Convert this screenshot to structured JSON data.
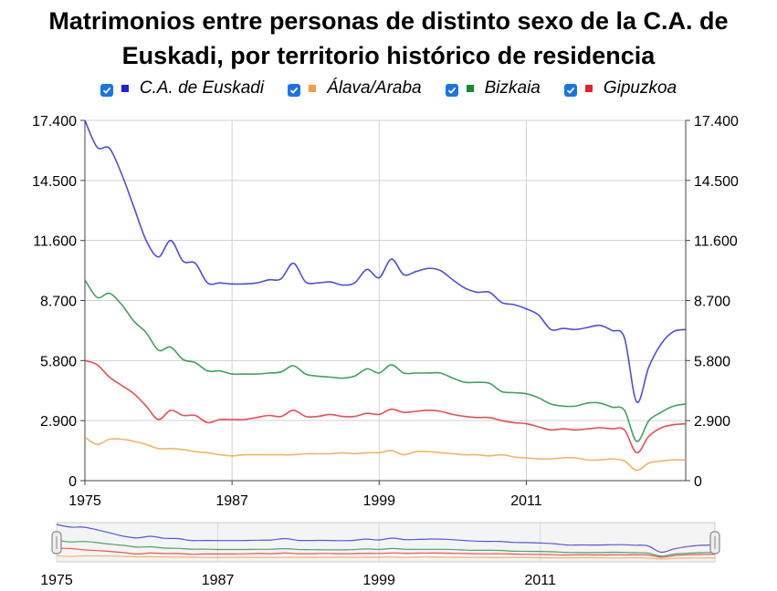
{
  "title": "Matrimonios entre personas de distinto sexo de la C.A. de Euskadi, por territorio histórico de residencia",
  "legend": [
    {
      "name": "C.A. de Euskadi",
      "color": "#2222dd",
      "checked": true
    },
    {
      "name": "Álava/Araba",
      "color": "#f0a040",
      "checked": true
    },
    {
      "name": "Bizkaia",
      "color": "#138a36",
      "checked": true
    },
    {
      "name": "Gipuzkoa",
      "color": "#e8202a",
      "checked": true
    }
  ],
  "chart_data": {
    "type": "line",
    "title": "Matrimonios entre personas de distinto sexo de la C.A. de Euskadi, por territorio histórico de residencia",
    "xlabel": "",
    "ylabel": "",
    "xlim": [
      1975,
      2024
    ],
    "ylim": [
      0,
      17400
    ],
    "x_ticks": [
      "1975",
      "1987",
      "1999",
      "2011"
    ],
    "y_ticks": [
      "0",
      "2.900",
      "5.800",
      "8.700",
      "11.600",
      "14.500",
      "17.400"
    ],
    "grid": true,
    "legend_position": "top",
    "x": [
      1975,
      1976,
      1977,
      1978,
      1979,
      1980,
      1981,
      1982,
      1983,
      1984,
      1985,
      1986,
      1987,
      1988,
      1989,
      1990,
      1991,
      1992,
      1993,
      1994,
      1995,
      1996,
      1997,
      1998,
      1999,
      2000,
      2001,
      2002,
      2003,
      2004,
      2005,
      2006,
      2007,
      2008,
      2009,
      2010,
      2011,
      2012,
      2013,
      2014,
      2015,
      2016,
      2017,
      2018,
      2019,
      2020,
      2021,
      2022,
      2023,
      2024
    ],
    "series": [
      {
        "name": "C.A. de Euskadi",
        "color": "#2222dd",
        "values": [
          17400,
          16100,
          16050,
          14800,
          13200,
          11600,
          10800,
          11600,
          10600,
          10500,
          9550,
          9550,
          9500,
          9500,
          9550,
          9700,
          9750,
          10500,
          9600,
          9550,
          9600,
          9450,
          9550,
          10200,
          9800,
          10700,
          9950,
          10100,
          10250,
          10150,
          9700,
          9300,
          9100,
          9100,
          8600,
          8500,
          8300,
          8000,
          7300,
          7350,
          7300,
          7400,
          7500,
          7250,
          6900,
          3800,
          5500,
          6600,
          7200,
          7300
        ]
      },
      {
        "name": "Álava/Araba",
        "color": "#f0a040",
        "values": [
          2100,
          1750,
          2000,
          2000,
          1900,
          1750,
          1550,
          1550,
          1500,
          1400,
          1350,
          1250,
          1200,
          1250,
          1250,
          1250,
          1250,
          1250,
          1300,
          1300,
          1300,
          1350,
          1300,
          1350,
          1350,
          1450,
          1250,
          1400,
          1400,
          1350,
          1300,
          1250,
          1250,
          1200,
          1250,
          1150,
          1100,
          1050,
          1050,
          1100,
          1100,
          1000,
          1000,
          1050,
          950,
          500,
          850,
          950,
          1000,
          1000
        ]
      },
      {
        "name": "Bizkaia",
        "color": "#138a36",
        "values": [
          9700,
          8850,
          9050,
          8500,
          7700,
          7150,
          6300,
          6450,
          5850,
          5700,
          5300,
          5300,
          5150,
          5150,
          5150,
          5200,
          5250,
          5550,
          5150,
          5050,
          5000,
          4950,
          5050,
          5400,
          5200,
          5600,
          5200,
          5200,
          5200,
          5200,
          4950,
          4750,
          4750,
          4700,
          4300,
          4250,
          4200,
          4000,
          3700,
          3600,
          3600,
          3750,
          3750,
          3550,
          3400,
          1900,
          2900,
          3300,
          3600,
          3700
        ]
      },
      {
        "name": "Gipuzkoa",
        "color": "#e8202a",
        "values": [
          5800,
          5600,
          5000,
          4600,
          4200,
          3600,
          2950,
          3400,
          3150,
          3150,
          2800,
          2950,
          2950,
          2950,
          3050,
          3150,
          3100,
          3400,
          3100,
          3100,
          3200,
          3100,
          3100,
          3250,
          3200,
          3450,
          3300,
          3350,
          3400,
          3350,
          3200,
          3100,
          3050,
          3050,
          2900,
          2800,
          2750,
          2600,
          2450,
          2500,
          2450,
          2500,
          2550,
          2500,
          2450,
          1350,
          2150,
          2550,
          2700,
          2750
        ]
      }
    ]
  },
  "axes": {
    "y_left": [
      "0",
      "2.900",
      "5.800",
      "8.700",
      "11.600",
      "14.500",
      "17.400"
    ],
    "y_right": [
      "0",
      "2.900",
      "5.800",
      "8.700",
      "11.600",
      "14.500",
      "17.400"
    ],
    "x": [
      "1975",
      "1987",
      "1999",
      "2011"
    ],
    "navigator_x": [
      "1975",
      "1987",
      "1999",
      "2011"
    ]
  }
}
